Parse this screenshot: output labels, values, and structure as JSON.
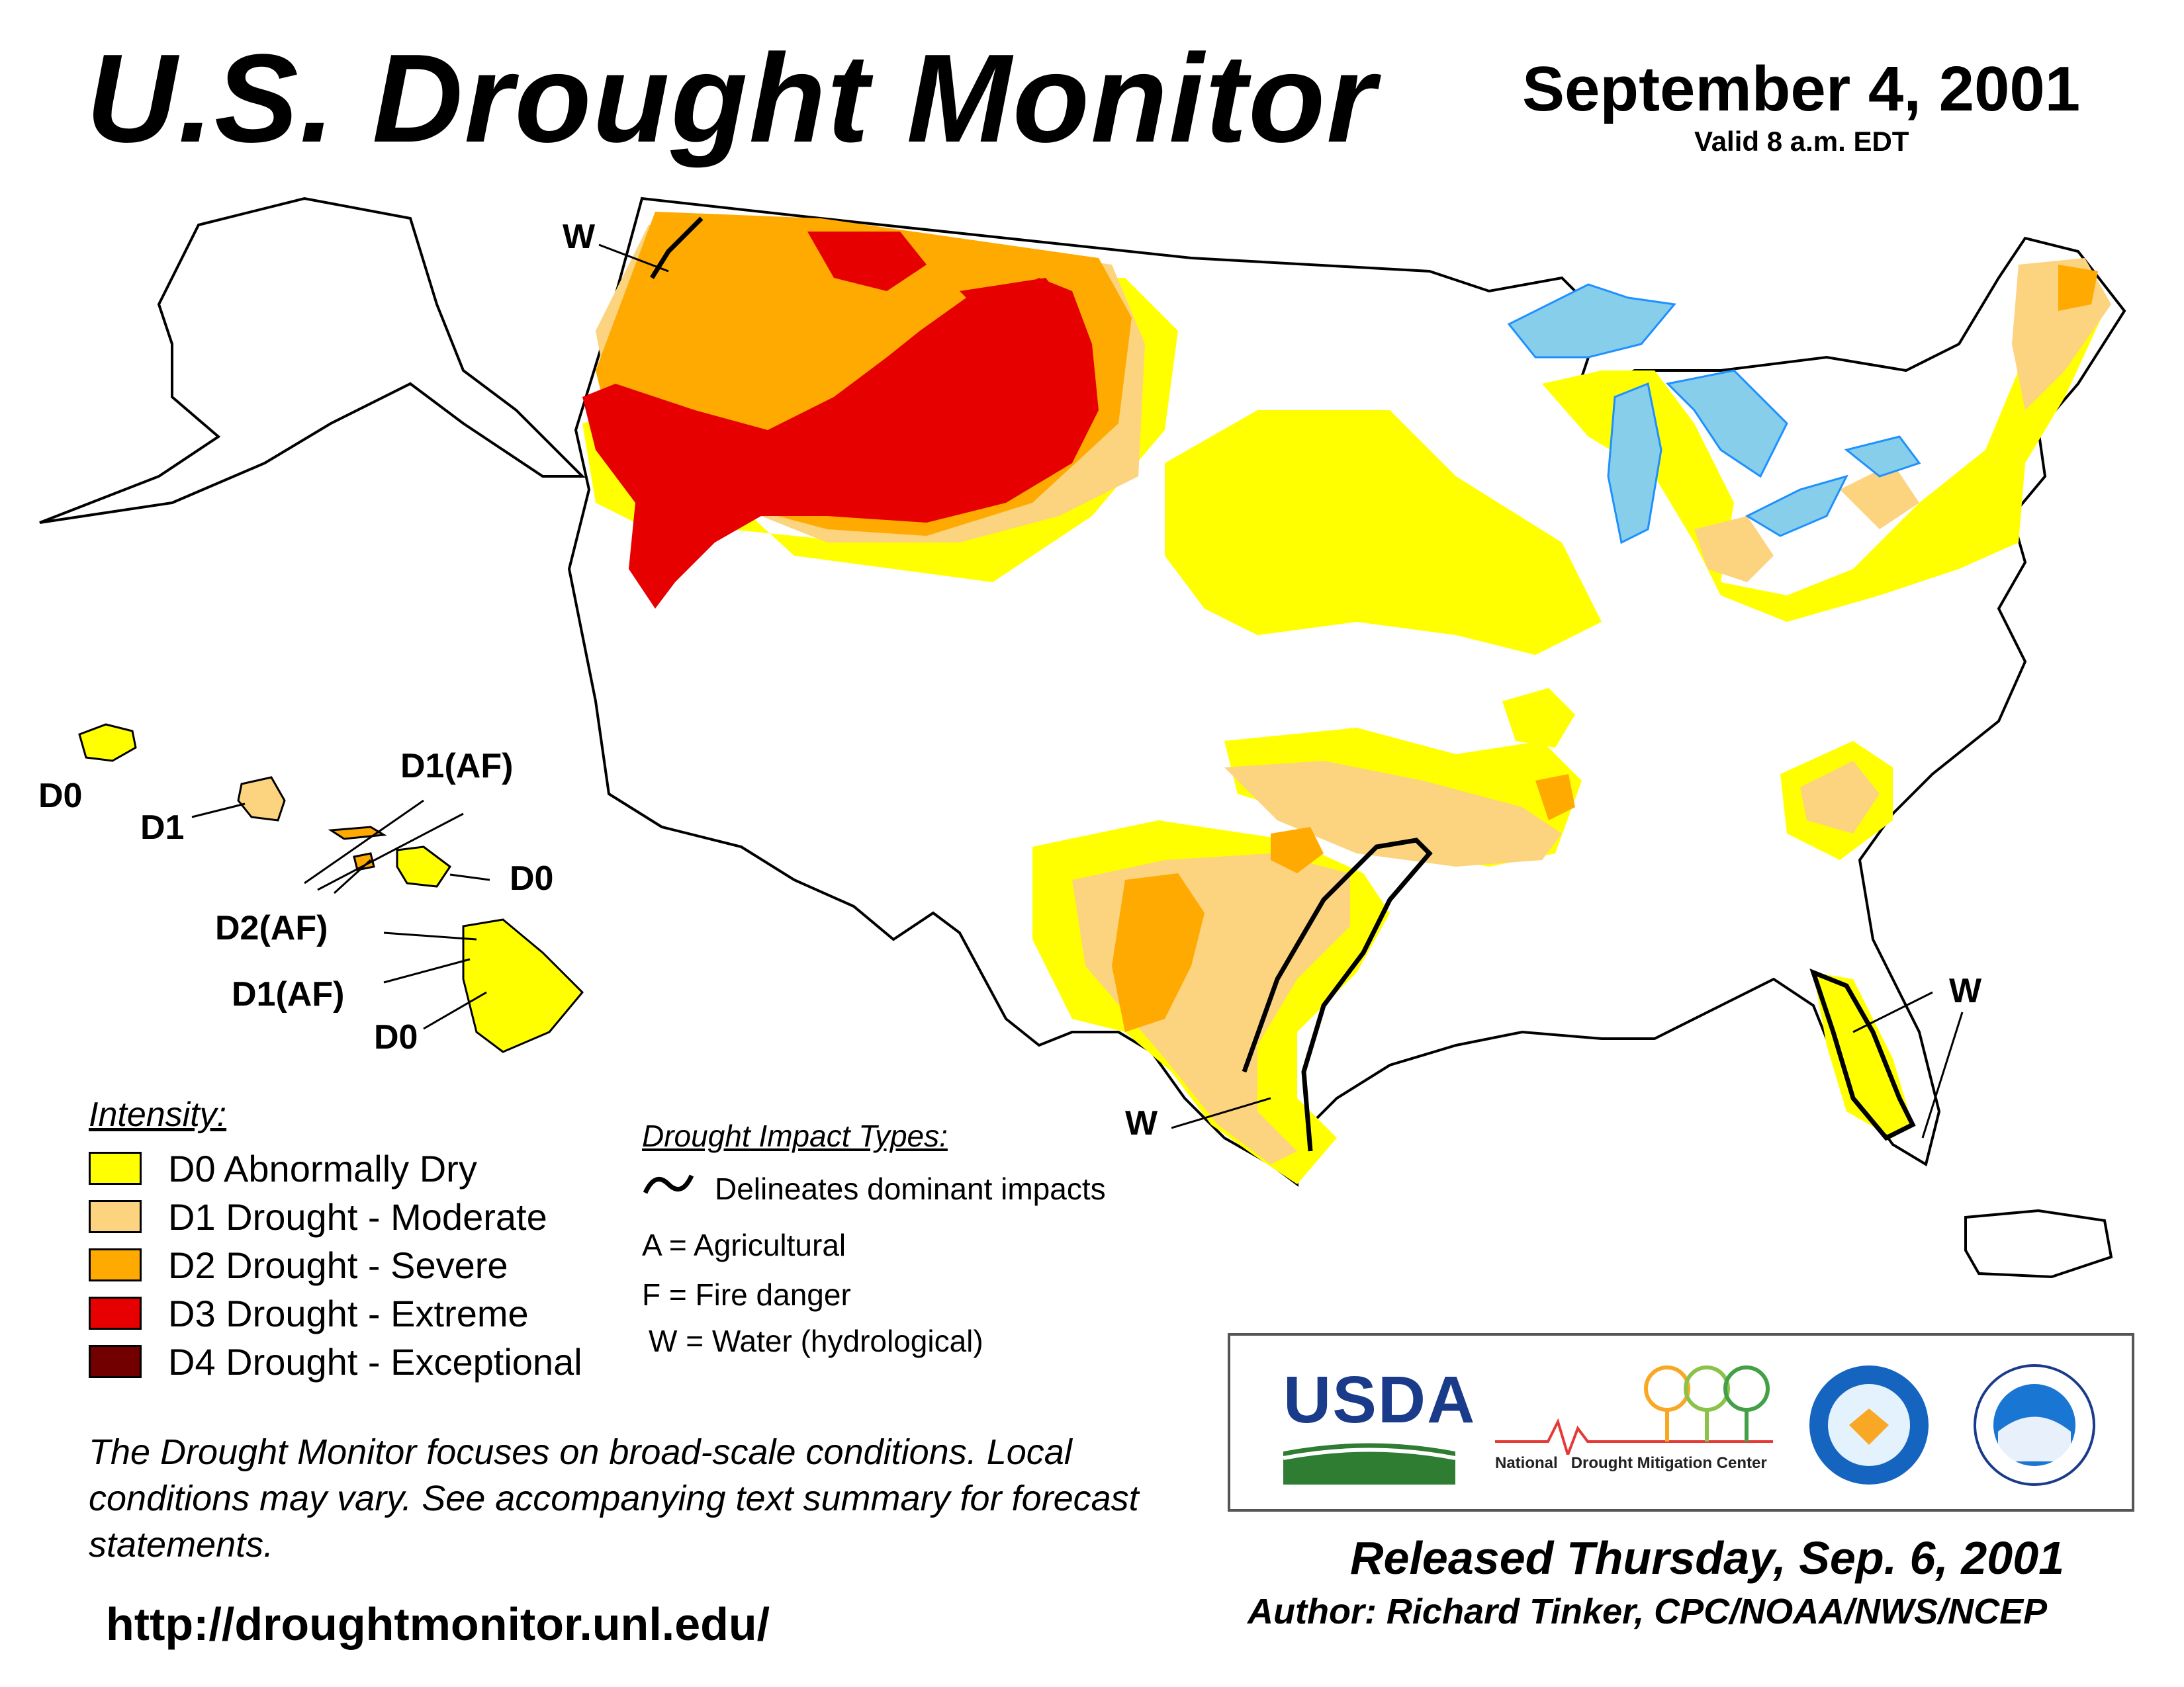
{
  "header": {
    "title": "U.S. Drought Monitor",
    "date": "September 4, 2001",
    "valid": "Valid 8 a.m. EDT"
  },
  "colors": {
    "d0": "#ffff00",
    "d1": "#fcd37f",
    "d2": "#ffaa00",
    "d3": "#e60000",
    "d4": "#730000",
    "water": "#1e90ff",
    "lakes": "#87ceeb",
    "state_border": "#000000",
    "county_border": "#a0a0a0"
  },
  "map_labels": {
    "w_northwest": "W",
    "w_texas": "W",
    "w_florida": "W",
    "hawaii_d0_kauai": "D0",
    "hawaii_d1_oahu": "D1",
    "hawaii_d1af_molokai": "D1(AF)",
    "hawaii_d0_maui": "D0",
    "hawaii_d2af": "D2(AF)",
    "hawaii_d1af_big_island": "D1(AF)",
    "hawaii_d0_big_island": "D0"
  },
  "legend": {
    "title": "Intensity:",
    "items": [
      {
        "label": "D0 Abnormally Dry",
        "color": "#ffff00"
      },
      {
        "label": "D1 Drought - Moderate",
        "color": "#fcd37f"
      },
      {
        "label": "D2 Drought - Severe",
        "color": "#ffaa00"
      },
      {
        "label": "D3 Drought - Extreme",
        "color": "#e60000"
      },
      {
        "label": "D4 Drought - Exceptional",
        "color": "#730000"
      }
    ]
  },
  "impacts": {
    "title": "Drought Impact Types:",
    "line_desc": "Delineates dominant impacts",
    "a": "A = Agricultural",
    "f": "F = Fire danger",
    "w": "W = Water (hydrological)"
  },
  "note": "The Drought Monitor focuses on broad-scale conditions. Local conditions may vary. See accompanying text summary for forecast statements.",
  "url": "http://droughtmonitor.unl.edu/",
  "logos": {
    "usda": "USDA",
    "ndmc_1": "National",
    "ndmc_2": "Drought Mitigation Center"
  },
  "footer": {
    "released": "Released Thursday, Sep. 6, 2001",
    "author": "Author: Richard Tinker, CPC/NOAA/NWS/NCEP"
  }
}
